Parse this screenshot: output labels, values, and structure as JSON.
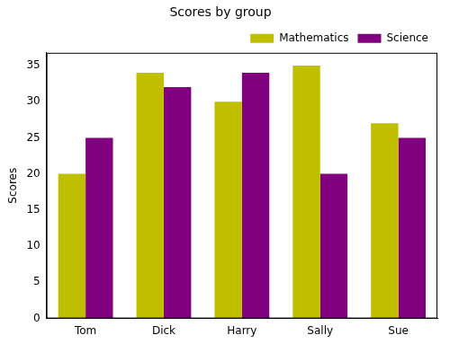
{
  "chart_data": {
    "type": "bar",
    "title": "Scores by group",
    "y_label": "Scores",
    "categories": [
      "Tom",
      "Dick",
      "Harry",
      "Sally",
      "Sue"
    ],
    "series": [
      {
        "name": "Mathematics",
        "color": "#bfbf00",
        "values": [
          20,
          34,
          30,
          35,
          27
        ]
      },
      {
        "name": "Science",
        "color": "#800080",
        "values": [
          25,
          32,
          34,
          20,
          25
        ]
      }
    ],
    "ylim": [
      0,
      36.75
    ],
    "yticks": [
      0,
      5,
      10,
      15,
      20,
      25,
      30,
      35
    ],
    "grid": false,
    "legend": "upper right"
  }
}
